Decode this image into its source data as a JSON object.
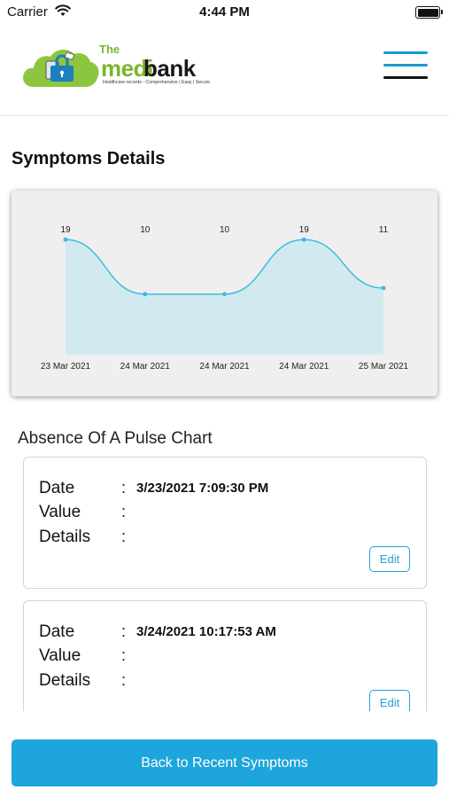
{
  "status_bar": {
    "carrier": "Carrier",
    "time": "4:44 PM",
    "battery_level": 1.0
  },
  "header": {
    "brand": {
      "the": "The",
      "medi": "medi",
      "bank": "bank",
      "tagline": "Healthcare records - Comprehensive | Easy | Secure"
    },
    "menu_icon": "hamburger-icon"
  },
  "page": {
    "section_title": "Symptoms Details",
    "list_title": "Absence Of A Pulse Chart",
    "back_button_label": "Back to Recent Symptoms"
  },
  "chart_data": {
    "type": "area",
    "title": "",
    "xlabel": "",
    "ylabel": "",
    "categories": [
      "23 Mar 2021",
      "24 Mar 2021",
      "24 Mar 2021",
      "24 Mar 2021",
      "25 Mar 2021"
    ],
    "values": [
      19,
      10,
      10,
      19,
      11
    ],
    "data_labels": [
      "19",
      "10",
      "10",
      "19",
      "11"
    ],
    "ylim": [
      0,
      23
    ],
    "grid": false,
    "line_color": "#3bbde0",
    "fill_color": "#d3e9f0"
  },
  "records": [
    {
      "date_label": "Date",
      "value_label": "Value",
      "details_label": "Details",
      "colon": ":",
      "date": "3/23/2021 7:09:30 PM",
      "value": "",
      "details": "",
      "edit_label": "Edit"
    },
    {
      "date_label": "Date",
      "value_label": "Value",
      "details_label": "Details",
      "colon": ":",
      "date": "3/24/2021 10:17:53 AM",
      "value": "",
      "details": "",
      "edit_label": "Edit"
    }
  ],
  "colors": {
    "accent": "#1ea5dc",
    "brand_green": "#7cb52a"
  }
}
